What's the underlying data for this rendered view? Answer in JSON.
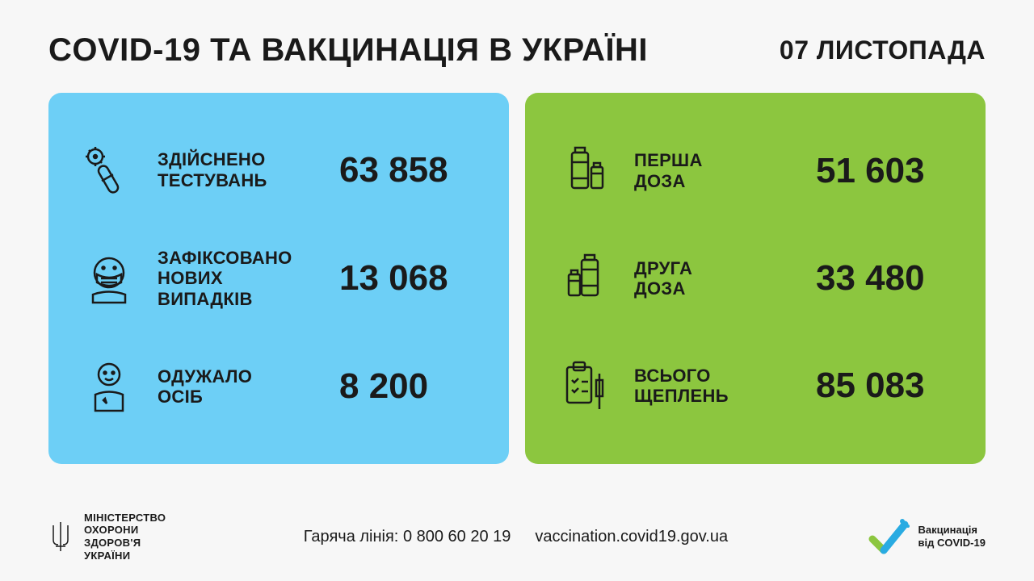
{
  "header": {
    "title": "COVID-19 ТА ВАКЦИНАЦІЯ В УКРАЇНІ",
    "date": "07 ЛИСТОПАДА"
  },
  "panels": {
    "left": {
      "bg": "#6dcff6",
      "rows": [
        {
          "icon": "test-tube",
          "label": "ЗДІЙСНЕНО\nТЕСТУВАНЬ",
          "value": "63 858"
        },
        {
          "icon": "masked-person",
          "label": "ЗАФІКСОВАНО\nНОВИХ\nВИПАДКІВ",
          "value": "13 068"
        },
        {
          "icon": "recovered-person",
          "label": "ОДУЖАЛО\nОСІБ",
          "value": "8 200"
        }
      ]
    },
    "right": {
      "bg": "#8cc63f",
      "rows": [
        {
          "icon": "vials-large",
          "label": "ПЕРША\nДОЗА",
          "value": "51 603"
        },
        {
          "icon": "vials-small",
          "label": "ДРУГА\nДОЗА",
          "value": "33 480"
        },
        {
          "icon": "clipboard-syringe",
          "label": "ВСЬОГО\nЩЕПЛЕНЬ",
          "value": "85 083"
        }
      ]
    }
  },
  "footer": {
    "ministry": "МІНІСТЕРСТВО\nОХОРОНИ\nЗДОРОВ'Я\nУКРАЇНИ",
    "hotline_label": "Гаряча лінія:",
    "hotline_number": "0 800 60 20 19",
    "website": "vaccination.covid19.gov.ua",
    "vacc_logo": "Вакцинація\nвід COVID-19"
  },
  "colors": {
    "bg": "#f7f7f7",
    "text": "#1a1a1a",
    "blue": "#6dcff6",
    "green": "#8cc63f",
    "logo_green": "#8cc63f",
    "logo_blue": "#29abe2"
  }
}
